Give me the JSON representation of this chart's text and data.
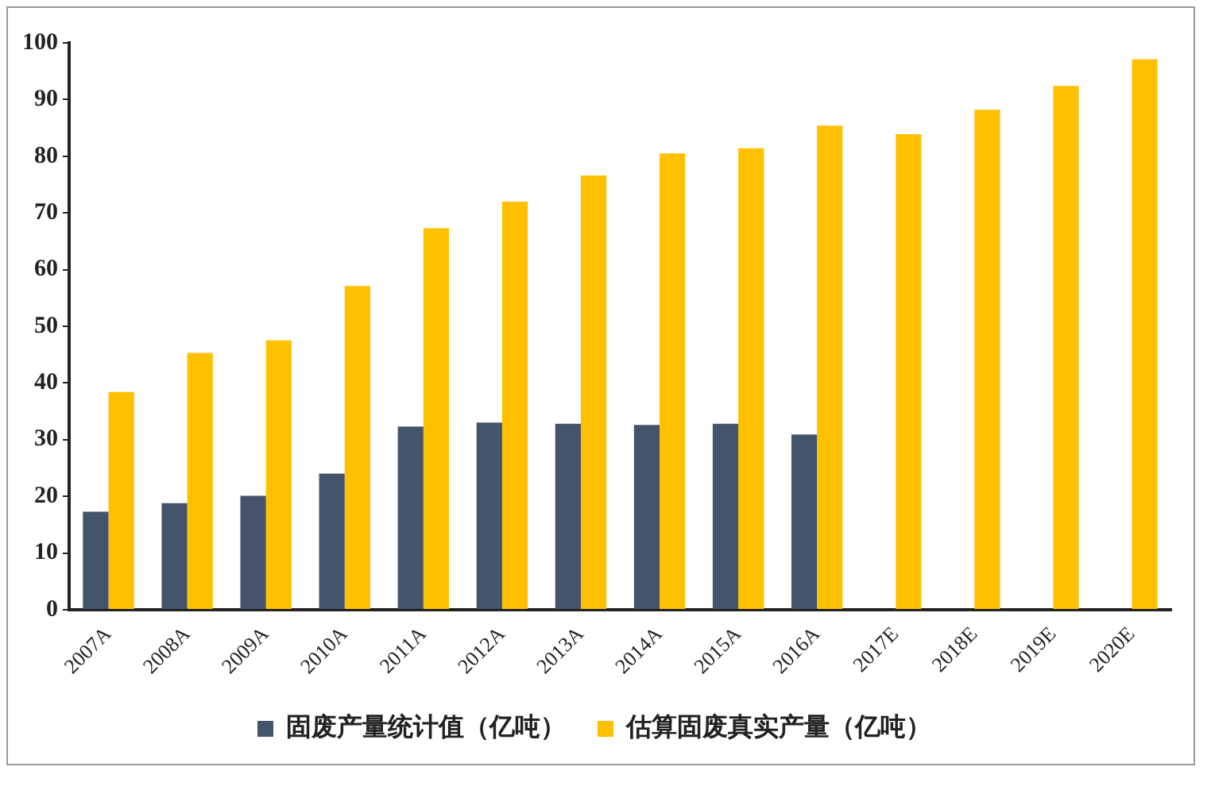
{
  "chart_data": {
    "type": "bar",
    "categories": [
      "2007A",
      "2008A",
      "2009A",
      "2010A",
      "2011A",
      "2012A",
      "2013A",
      "2014A",
      "2015A",
      "2016A",
      "2017E",
      "2018E",
      "2019E",
      "2020E"
    ],
    "series": [
      {
        "name": "固废产量统计值（亿吨）",
        "color": "#44546a",
        "values": [
          17.3,
          18.8,
          20.1,
          24.0,
          32.3,
          33.0,
          32.8,
          32.6,
          32.8,
          30.9,
          null,
          null,
          null,
          null
        ]
      },
      {
        "name": "估算固废真实产量（亿吨）",
        "color": "#ffc000",
        "values": [
          38.4,
          45.3,
          47.5,
          57.1,
          67.3,
          72.0,
          76.6,
          80.5,
          81.4,
          85.4,
          83.9,
          88.2,
          92.4,
          97.1
        ]
      }
    ],
    "ylim": [
      0,
      100
    ],
    "yticks": [
      0,
      10,
      20,
      30,
      40,
      50,
      60,
      70,
      80,
      90,
      100
    ],
    "grid": false,
    "legend": "bottom"
  }
}
